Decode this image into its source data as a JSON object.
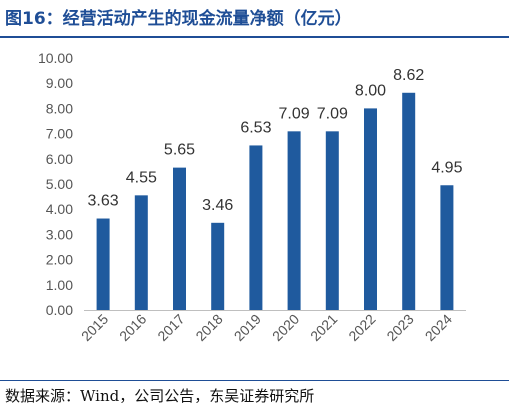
{
  "figure": {
    "title": "图16：经营活动产生的现金流量净额（亿元）",
    "source": "数据来源：Wind，公司公告，东吴证券研究所"
  },
  "chart_data": {
    "type": "bar",
    "title": "经营活动产生的现金流量净额（亿元）",
    "categories": [
      "2015",
      "2016",
      "2017",
      "2018",
      "2019",
      "2020",
      "2021",
      "2022",
      "2023",
      "2024"
    ],
    "values": [
      3.63,
      4.55,
      5.65,
      3.46,
      6.53,
      7.09,
      7.09,
      8.0,
      8.62,
      4.95
    ],
    "data_labels": [
      "3.63",
      "4.55",
      "5.65",
      "3.46",
      "6.53",
      "7.09",
      "7.09",
      "8.00",
      "8.62",
      "4.95"
    ],
    "y_ticks": [
      "0.00",
      "1.00",
      "2.00",
      "3.00",
      "4.00",
      "5.00",
      "6.00",
      "7.00",
      "8.00",
      "9.00",
      "10.00"
    ],
    "ylim": [
      0,
      10
    ],
    "grid": false,
    "legend": "none",
    "bar_color": "#1f5a9e",
    "title_color": "#1f4e96"
  }
}
